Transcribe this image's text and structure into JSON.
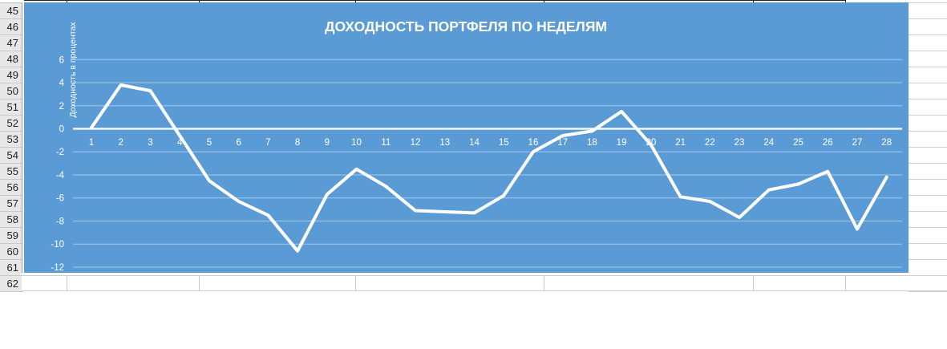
{
  "sheet": {
    "row_numbers": [
      "45",
      "46",
      "47",
      "48",
      "49",
      "50",
      "51",
      "52",
      "53",
      "54",
      "55",
      "56",
      "57",
      "58",
      "59",
      "60",
      "61",
      "62"
    ]
  },
  "chart_data": {
    "type": "line",
    "title": "ДОХОДНОСТЬ ПОРТФЕЛЯ ПО НЕДЕЛЯМ",
    "xlabel": "",
    "ylabel": "Доходность в процентах",
    "categories": [
      1,
      2,
      3,
      4,
      5,
      6,
      7,
      8,
      9,
      10,
      11,
      12,
      13,
      14,
      15,
      16,
      17,
      18,
      19,
      20,
      21,
      22,
      23,
      24,
      25,
      26,
      27,
      28
    ],
    "values": [
      0.1,
      3.8,
      3.3,
      -0.6,
      -4.5,
      -6.3,
      -7.5,
      -10.6,
      -5.7,
      -3.5,
      -5.0,
      -7.1,
      -7.2,
      -7.3,
      -5.8,
      -2.0,
      -0.6,
      -0.2,
      1.5,
      -1.4,
      -5.9,
      -6.3,
      -7.7,
      -5.3,
      -4.8,
      -3.7,
      -8.7,
      -4.2
    ],
    "y_ticks": [
      6,
      4,
      2,
      0,
      -2,
      -4,
      -6,
      -8,
      -10,
      -12
    ],
    "ylim": [
      -13.5,
      8
    ],
    "grid": true,
    "legend": false,
    "colors": {
      "background": "#5B9BD5",
      "line": "#FFFFFF",
      "text": "#FFFFFF",
      "gridline": "rgba(255,255,255,0.45)",
      "zero_line": "#FFFFFF"
    }
  }
}
